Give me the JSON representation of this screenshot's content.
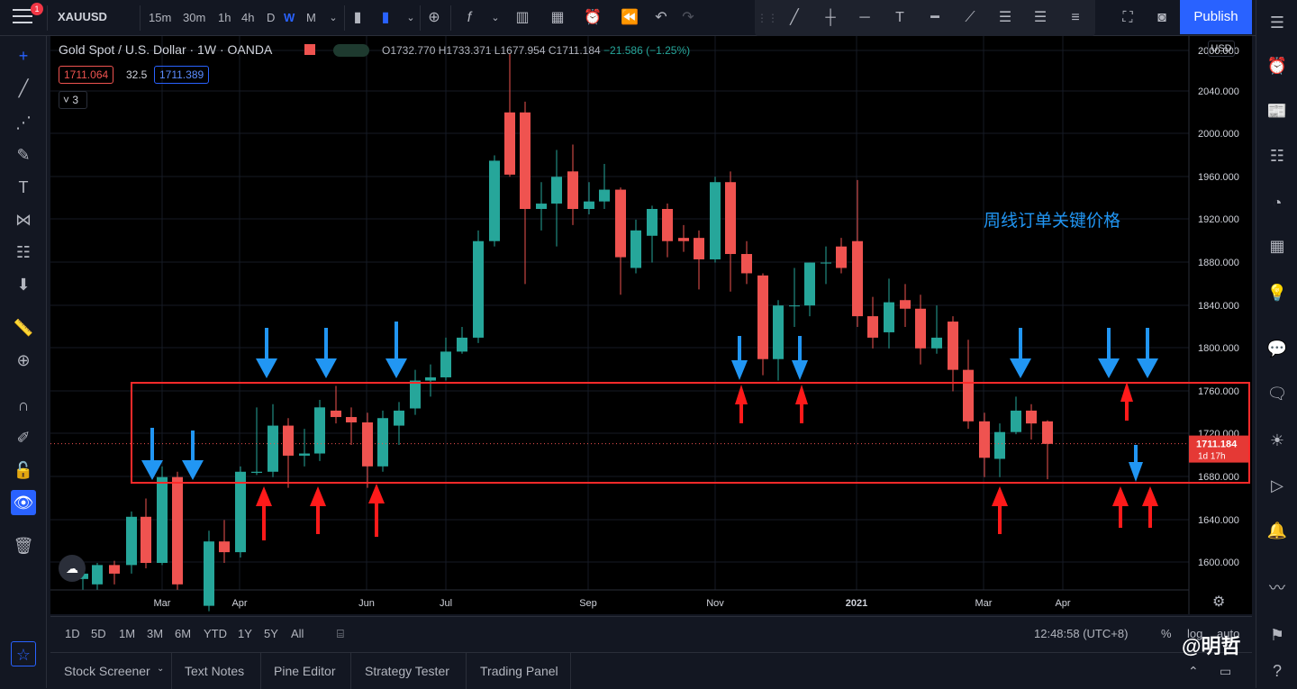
{
  "toolbar": {
    "notification_count": "1",
    "symbol": "XAUUSD",
    "timeframes": [
      "15m",
      "30m",
      "1h",
      "4h",
      "D",
      "W",
      "M"
    ],
    "active_timeframe": "W",
    "publish_label": "Publish"
  },
  "legend": {
    "title": "Gold Spot / U.S. Dollar · 1W · OANDA",
    "o": "O1732.770",
    "h": "H1733.371",
    "l": "L1677.954",
    "c": "C1711.184",
    "change": "−21.586 (−1.25%)",
    "bid": "1711.064",
    "spread": "32.5",
    "ask": "1711.389",
    "collapse": "3"
  },
  "axis": {
    "currency": "USD",
    "price_labels": [
      "2000.000",
      "2040.000",
      "2000.000",
      "1960.000",
      "1920.000",
      "1880.000",
      "1840.000",
      "1800.000",
      "1760.000",
      "1720.000",
      "1680.000",
      "1640.000",
      "1600.000"
    ],
    "time_labels": [
      "Mar",
      "Apr",
      "Jun",
      "Jul",
      "Sep",
      "Nov",
      "2021",
      "Mar",
      "Apr"
    ],
    "last_price": "1711.184",
    "countdown": "1d 17h"
  },
  "annotation": "周线订单关键价格",
  "bottom": {
    "ranges": [
      "1D",
      "5D",
      "1M",
      "3M",
      "6M",
      "YTD",
      "1Y",
      "5Y",
      "All"
    ],
    "clock": "12:48:58 (UTC+8)",
    "pct": "%",
    "log": "log",
    "auto": "auto"
  },
  "panels": [
    "Stock Screener",
    "Text Notes",
    "Pine Editor",
    "Strategy Tester",
    "Trading Panel"
  ],
  "watermark": "@明哲",
  "colors": {
    "up": "#26a69a",
    "down": "#ef5350",
    "box": "#ff2a2a",
    "blue_arrow": "#2196f3",
    "red_arrow": "#ff1a1a",
    "accent": "#2962ff"
  }
}
